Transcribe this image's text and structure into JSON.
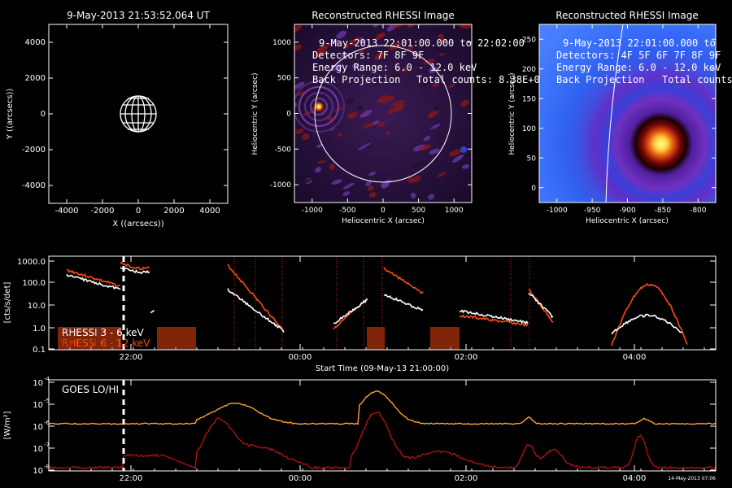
{
  "panel1": {
    "title": "9-May-2013 21:53:52.064 UT",
    "xlabel": "X ((arcsecs))",
    "ylabel": "Y ((arcsecs))",
    "xticks": [
      "-4000",
      "-2000",
      "0",
      "2000",
      "4000"
    ],
    "yticks": [
      "4000",
      "2000",
      "0",
      "-2000",
      "-4000"
    ]
  },
  "panel2": {
    "title": "Reconstructed RHESSI Image",
    "line1": "9-May-2013 22:01:00.000 to 22:02:00",
    "line2": "Detectors: 7F 8F 9F",
    "line3": "Energy Range: 6.0 - 12.0 keV",
    "line4a": "Back Projection",
    "line4b": "Total counts: 8.38E+0",
    "xlabel": "Heliocentric X (arcsec)",
    "ylabel": "Heliocentric Y (arcsec)",
    "xticks": [
      "-1000",
      "-500",
      "0",
      "500",
      "1000"
    ],
    "yticks": [
      "1000",
      "500",
      "0",
      "-500",
      "-1000"
    ]
  },
  "panel3": {
    "title": "Reconstructed RHESSI Image",
    "line1": "9-May-2013 22:01:00.000 to",
    "line2": "Detectors: 4F 5F 6F 7F 8F 9F",
    "line3": "Energy Range: 6.0 - 12.0 keV",
    "line4a": "Back Projection",
    "line4b": "Total counts:",
    "xlabel": "Heliocentric X (arcsec)",
    "ylabel": "Heliocentric Y (arcsec)",
    "xticks": [
      "-1000",
      "-950",
      "-900",
      "-850",
      "-800"
    ],
    "yticks": [
      "250",
      "200",
      "150",
      "100",
      "50",
      "0"
    ]
  },
  "rhessi": {
    "ylabel": "[cts/s/det]",
    "yticks": [
      "1000.0",
      "100.0",
      "10.0",
      "1.0",
      "0.1"
    ],
    "xticks": [
      "22:00",
      "00:00",
      "02:00",
      "04:00"
    ],
    "xlabel": "Start Time (09-May-13 21:00:00)",
    "legend1": "RHESSI  3 - 6 keV",
    "legend2": "RHESSI  6 - 12 keV"
  },
  "goes": {
    "label": "GOES LO/HI",
    "ylabel": "[W/m²]",
    "xticks": [
      "22:00",
      "00:00",
      "02:00",
      "04:00"
    ],
    "ytick_exps": [
      "-4",
      "-5",
      "-6",
      "-7",
      "-8"
    ],
    "stamp": "14-May-2013 07:06"
  },
  "colors": {
    "background": "#000000",
    "foreground": "#ffffff",
    "rhessi_high": "#ff4a10",
    "goes_lo": "#ffa030",
    "goes_hi": "#b01010"
  }
}
